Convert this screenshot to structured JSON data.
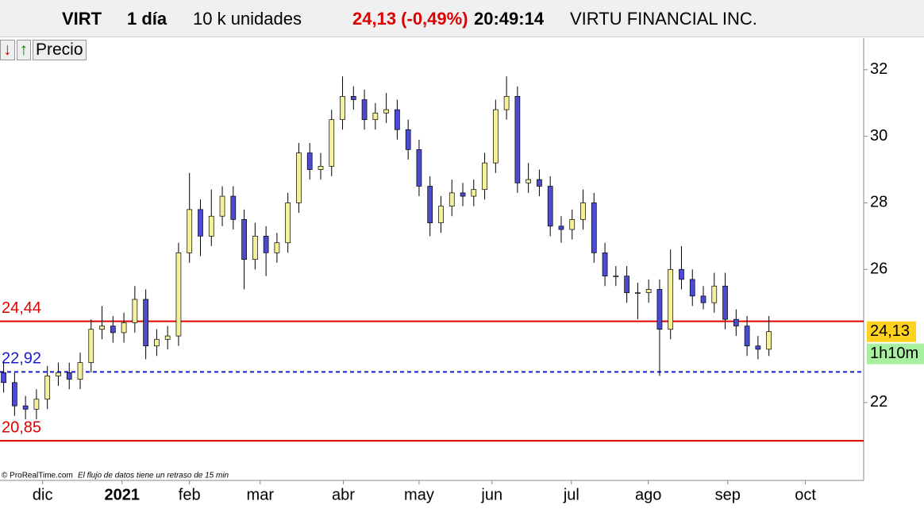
{
  "toolbar": {
    "symbol": "VIRT",
    "period": "1 día",
    "units": "10 k unidades",
    "quote": "24,13 (-0,49%)",
    "time": "20:49:14",
    "name": "VIRTU FINANCIAL INC.",
    "indicator": "Precio"
  },
  "footer": {
    "copyright": "© ProRealTime.com",
    "note": "El flujo de datos tiene un retraso de 15 min"
  },
  "chart_data": {
    "type": "candlestick",
    "x": [
      0,
      3,
      6,
      9,
      12,
      15,
      18,
      21,
      24,
      27,
      30,
      33,
      36,
      39,
      42,
      45,
      48,
      51,
      54,
      57,
      60,
      63,
      66,
      69,
      72,
      75,
      78,
      81,
      84,
      87,
      90,
      93,
      96,
      99,
      102,
      105,
      108,
      111,
      114,
      117,
      120,
      123,
      126,
      129,
      132,
      135,
      138,
      141,
      144,
      147,
      150,
      153,
      156,
      159,
      162,
      165,
      168,
      171,
      174,
      177,
      180,
      183,
      186,
      189,
      192,
      195,
      198,
      201,
      204,
      207,
      210
    ],
    "open": [
      22.9,
      22.6,
      21.9,
      21.8,
      22.1,
      22.8,
      22.9,
      22.7,
      23.2,
      24.2,
      24.3,
      24.1,
      24.4,
      25.1,
      23.7,
      23.9,
      24.0,
      26.5,
      27.8,
      27.0,
      27.6,
      28.2,
      27.5,
      26.3,
      27.0,
      26.5,
      26.8,
      28.0,
      29.5,
      29.0,
      29.1,
      30.5,
      31.2,
      31.1,
      30.5,
      30.7,
      30.8,
      30.2,
      29.6,
      28.5,
      27.4,
      27.9,
      28.3,
      28.2,
      28.4,
      29.2,
      30.8,
      31.2,
      28.6,
      28.7,
      28.5,
      27.3,
      27.2,
      27.5,
      28.0,
      26.5,
      25.8,
      25.8,
      25.3,
      25.3,
      25.4,
      24.2,
      26.0,
      25.7,
      25.2,
      25.0,
      25.5,
      24.5,
      24.3,
      23.7,
      23.6
    ],
    "high": [
      23.2,
      22.9,
      22.2,
      22.4,
      23.1,
      23.2,
      23.2,
      23.5,
      24.5,
      24.9,
      24.6,
      24.7,
      25.5,
      25.4,
      24.2,
      24.3,
      26.8,
      28.9,
      28.1,
      28.4,
      28.5,
      28.5,
      27.8,
      27.4,
      27.3,
      27.1,
      28.3,
      29.8,
      29.8,
      29.5,
      30.8,
      31.8,
      31.5,
      31.4,
      31.0,
      31.3,
      31.1,
      30.5,
      29.9,
      28.8,
      28.2,
      28.7,
      28.6,
      28.7,
      29.5,
      31.1,
      31.8,
      31.5,
      29.2,
      29.0,
      28.8,
      27.6,
      27.8,
      28.4,
      28.3,
      26.8,
      26.1,
      26.1,
      25.6,
      25.7,
      25.7,
      26.6,
      26.7,
      26.0,
      25.5,
      25.9,
      25.9,
      24.8,
      24.6,
      24.0,
      24.6
    ],
    "low": [
      22.3,
      21.6,
      21.5,
      21.5,
      21.8,
      22.5,
      22.4,
      22.4,
      22.9,
      23.9,
      23.8,
      23.8,
      24.1,
      23.3,
      23.4,
      23.6,
      23.7,
      26.2,
      26.4,
      26.7,
      27.3,
      27.2,
      25.4,
      26.0,
      25.8,
      26.2,
      26.5,
      27.7,
      28.7,
      28.7,
      28.8,
      30.2,
      30.8,
      30.2,
      30.2,
      30.4,
      29.9,
      29.3,
      28.2,
      27.0,
      27.1,
      27.6,
      27.9,
      27.9,
      28.1,
      28.9,
      30.5,
      28.3,
      28.3,
      28.2,
      27.0,
      26.8,
      26.9,
      27.2,
      26.2,
      25.5,
      25.5,
      25.0,
      24.5,
      25.0,
      22.8,
      23.9,
      25.4,
      24.9,
      24.8,
      24.7,
      24.2,
      24.0,
      23.4,
      23.3,
      23.4
    ],
    "close": [
      22.6,
      21.9,
      21.8,
      22.1,
      22.8,
      22.9,
      22.7,
      23.2,
      24.2,
      24.3,
      24.1,
      24.4,
      25.1,
      23.7,
      23.9,
      24.0,
      26.5,
      27.8,
      27.0,
      27.6,
      28.2,
      27.5,
      26.3,
      27.0,
      26.5,
      26.8,
      28.0,
      29.5,
      29.0,
      29.1,
      30.5,
      31.2,
      31.1,
      30.5,
      30.7,
      30.8,
      30.2,
      29.6,
      28.5,
      27.4,
      27.9,
      28.3,
      28.2,
      28.4,
      29.2,
      30.8,
      31.2,
      28.6,
      28.7,
      28.5,
      27.3,
      27.2,
      27.5,
      28.0,
      26.5,
      25.8,
      25.8,
      25.3,
      25.3,
      25.4,
      24.2,
      26.0,
      25.7,
      25.2,
      25.0,
      25.5,
      24.5,
      24.3,
      23.7,
      23.6,
      24.13
    ],
    "up_color": "#f4f09c",
    "down_color": "#4b4bd2",
    "xlim": [
      -1,
      236
    ],
    "ylim": [
      19.66,
      32.95
    ],
    "xticks": [
      {
        "value": 10.7,
        "label": "dic"
      },
      {
        "value": 32.5,
        "label": "2021"
      },
      {
        "value": 51,
        "label": "feb"
      },
      {
        "value": 70.4,
        "label": "mar"
      },
      {
        "value": 93.2,
        "label": "abr"
      },
      {
        "value": 114,
        "label": "may"
      },
      {
        "value": 134,
        "label": "jun"
      },
      {
        "value": 155.8,
        "label": "jul"
      },
      {
        "value": 176.9,
        "label": "ago"
      },
      {
        "value": 198.7,
        "label": "sep"
      },
      {
        "value": 220,
        "label": "oct"
      }
    ],
    "yticks": [
      22,
      26,
      28,
      30,
      32
    ],
    "levels": [
      {
        "value": 24.44,
        "label": "24,44",
        "color": "#e00000",
        "dashed": false
      },
      {
        "value": 22.92,
        "label": "22,92",
        "color": "#1a1acc",
        "dashed": true
      },
      {
        "value": 20.85,
        "label": "20,85",
        "color": "#e00000",
        "dashed": false
      }
    ],
    "last_price": {
      "value": 24.13,
      "label": "24,13"
    },
    "countdown": "1h10m"
  }
}
